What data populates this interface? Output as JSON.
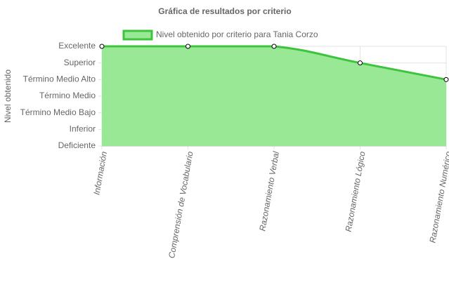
{
  "chart_data": {
    "type": "line",
    "title": "Gráfica de resultados por criterio",
    "ylabel": "Nivel obtenido",
    "categories": [
      "Información",
      "Comprensión de Vocabulario",
      "Razonamiento Verbal",
      "Razonamiento Lógico",
      "Razonamiento Numérico"
    ],
    "series": [
      {
        "name": "Nivel obtenido por criterio para Tania Corzo",
        "color": "#3ec43c",
        "fill": "#98e896",
        "values": [
          6,
          6,
          6,
          5,
          4
        ]
      }
    ],
    "ylim": [
      0,
      6
    ],
    "yticks": [
      {
        "value": 0,
        "label": "Deficiente"
      },
      {
        "value": 1,
        "label": "Inferior"
      },
      {
        "value": 2,
        "label": "Término Medio Bajo"
      },
      {
        "value": 3,
        "label": "Término Medio"
      },
      {
        "value": 4,
        "label": "Término Medio Alto"
      },
      {
        "value": 5,
        "label": "Superior"
      },
      {
        "value": 6,
        "label": "Excelente"
      }
    ],
    "grid": true
  }
}
